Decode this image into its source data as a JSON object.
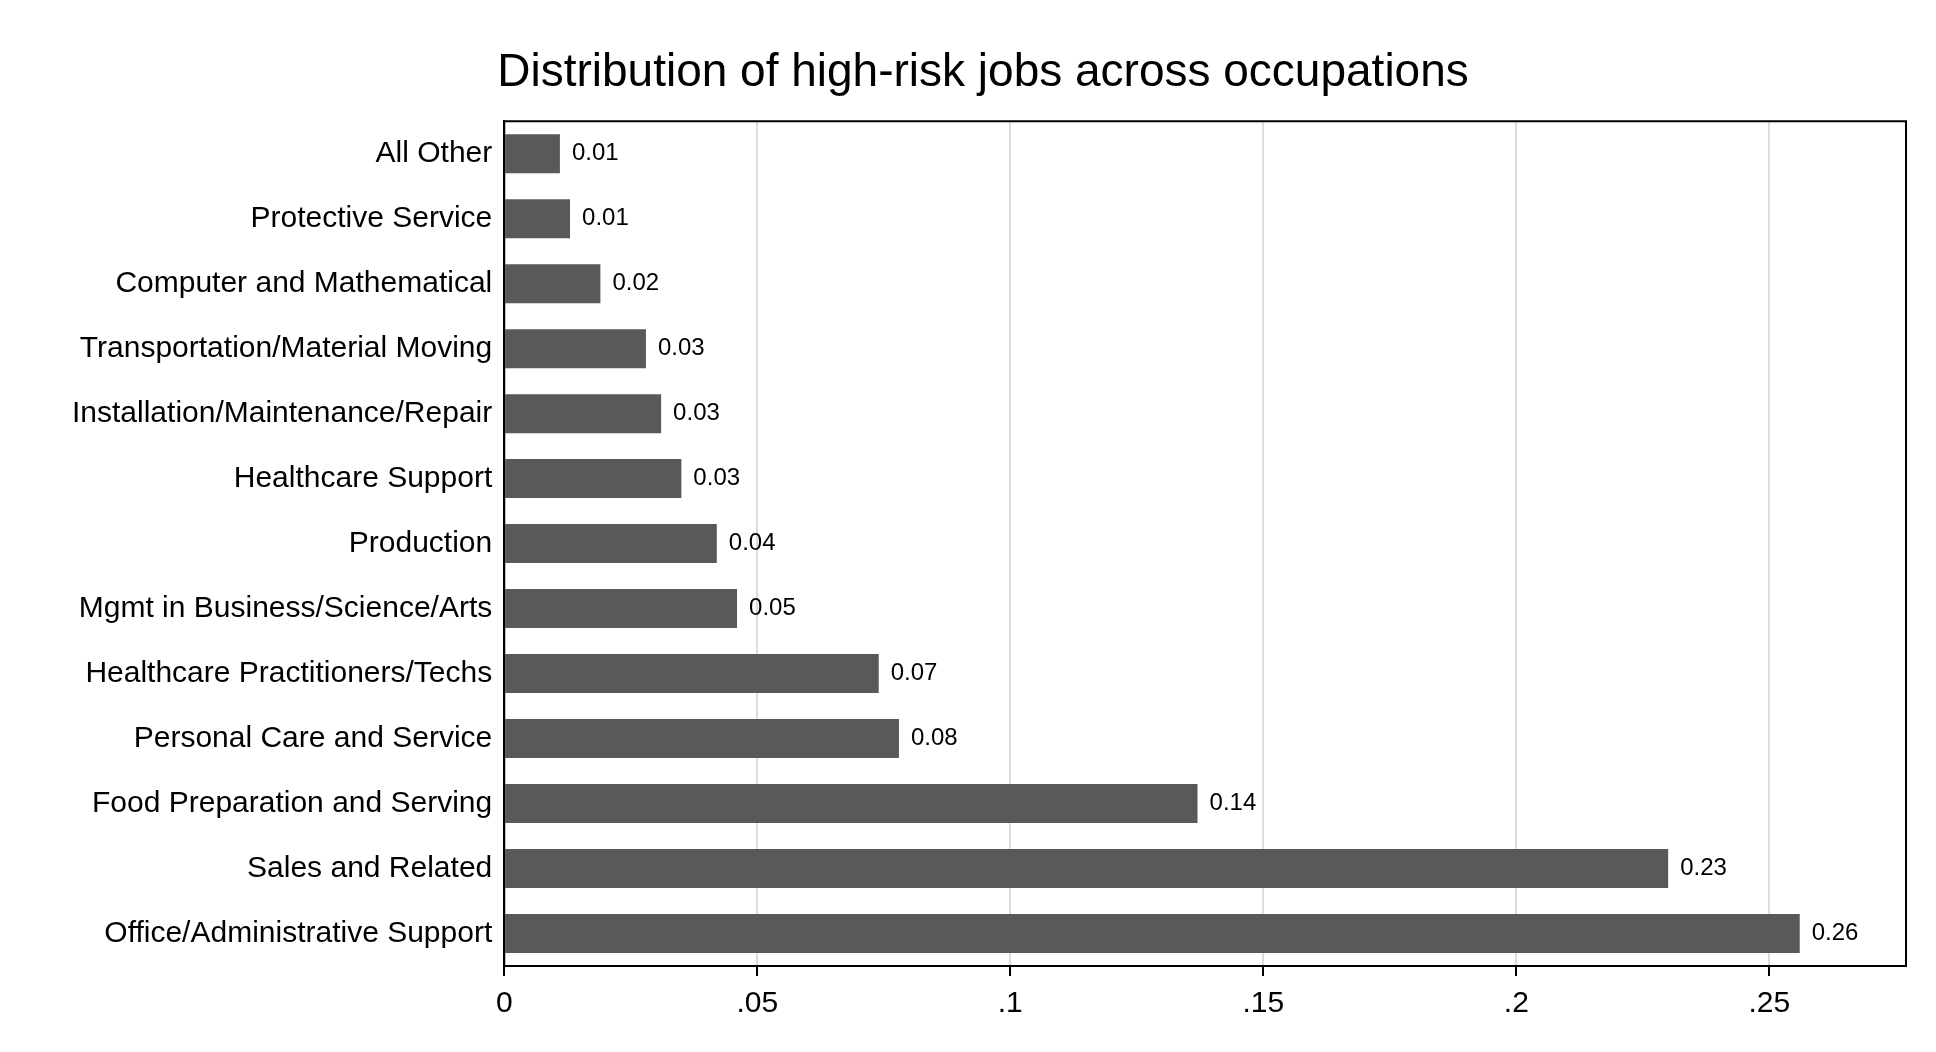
{
  "chart_data": {
    "type": "bar",
    "orientation": "horizontal",
    "title": "Distribution of high-risk jobs across occupations",
    "categories": [
      "All Other",
      "Protective Service",
      "Computer and Mathematical",
      "Transportation/Material Moving",
      "Installation/Maintenance/Repair",
      "Healthcare Support",
      "Production",
      "Mgmt in Business/Science/Arts",
      "Healthcare Practitioners/Techs",
      "Personal Care and Service",
      "Food Preparation and Serving",
      "Sales and Related",
      "Office/Administrative Support"
    ],
    "values": [
      0.011,
      0.013,
      0.019,
      0.028,
      0.031,
      0.035,
      0.042,
      0.046,
      0.074,
      0.078,
      0.137,
      0.23,
      0.256
    ],
    "value_labels": [
      "0.01",
      "0.01",
      "0.02",
      "0.03",
      "0.03",
      "0.03",
      "0.04",
      "0.05",
      "0.07",
      "0.08",
      "0.14",
      "0.23",
      "0.26"
    ],
    "color": "#595959",
    "xlim": [
      0,
      0.277
    ],
    "xticks": [
      0,
      {
        "value": 0.05,
        "label": ".05"
      },
      {
        "value": 0.1,
        "label": ".1"
      },
      {
        "value": 0.15,
        "label": ".15"
      },
      {
        "value": 0.2,
        "label": ".2"
      },
      {
        "value": 0.25,
        "label": ".25"
      }
    ],
    "grid": "x",
    "legend": false
  }
}
